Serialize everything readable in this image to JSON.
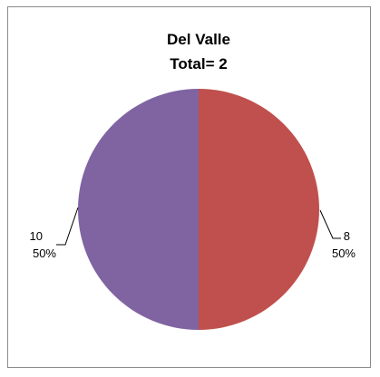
{
  "chart_data": {
    "type": "pie",
    "title_lines": [
      "Del Valle",
      "Total= 2"
    ],
    "slices": [
      {
        "category": "8",
        "value": 1,
        "percent_label": "50%",
        "color": "#C0504D"
      },
      {
        "category": "10",
        "value": 1,
        "percent_label": "50%",
        "color": "#8064A2"
      }
    ],
    "start_angle_deg": 0,
    "direction": "clockwise",
    "legend": "none",
    "total": 2
  }
}
